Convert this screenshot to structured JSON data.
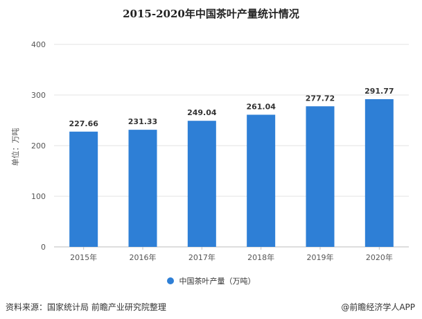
{
  "chart_data": {
    "type": "bar",
    "title": "2015-2020年中国茶叶产量统计情况",
    "xlabel": "",
    "ylabel": "单位：万吨",
    "categories": [
      "2015年",
      "2016年",
      "2017年",
      "2018年",
      "2019年",
      "2020年"
    ],
    "series": [
      {
        "name": "中国茶叶产量（万吨）",
        "values": [
          227.66,
          231.33,
          249.04,
          261.04,
          277.72,
          291.77
        ],
        "labels": [
          "227.66",
          "231.33",
          "249.04",
          "261.04",
          "277.72",
          "291.77"
        ],
        "color": "#2e7fd6"
      }
    ],
    "ylim": [
      0,
      400
    ],
    "yticks": [
      0,
      100,
      200,
      300,
      400
    ],
    "grid": true,
    "legend_position": "bottom"
  },
  "footer": {
    "source": "资料来源：国家统计局 前瞻产业研究院整理",
    "brand": "@前瞻经济学人APP"
  }
}
